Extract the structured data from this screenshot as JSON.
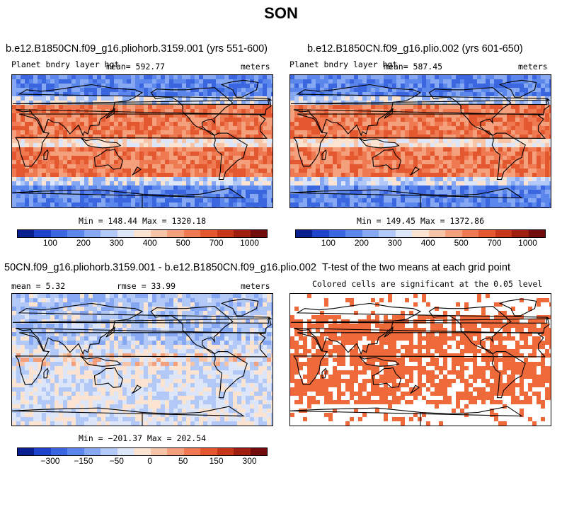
{
  "title": "SON",
  "palettes": {
    "abs": [
      "#0a1f8f",
      "#1d44c9",
      "#3a66e0",
      "#5b86ec",
      "#86a8f2",
      "#b2c8f7",
      "#dde6f8",
      "#fbe3d2",
      "#f8c4a8",
      "#f5a07c",
      "#ef7a52",
      "#e3582e",
      "#c6381a",
      "#a01e0e",
      "#730c0c"
    ],
    "sig": "#ef6a3a"
  },
  "panels": [
    {
      "id": "p1",
      "title": "b.e12.B1850CN.f09_g16.pliohorb.3159.001 (yrs 551-600)",
      "var": "Planet bndry layer hgt",
      "mean": "mean= 592.77",
      "units": "meters",
      "minmax": "Min = 148.44 Max = 1320.18",
      "ticks": [
        "100",
        "200",
        "300",
        "400",
        "500",
        "700",
        "1000"
      ]
    },
    {
      "id": "p2",
      "title": "b.e12.B1850CN.f09_g16.plio.002 (yrs 601-650)",
      "var": "Planet bndry layer hgt",
      "mean": "mean= 587.45",
      "units": "meters",
      "minmax": "Min = 149.45 Max = 1372.86",
      "ticks": [
        "100",
        "200",
        "300",
        "400",
        "500",
        "700",
        "1000"
      ]
    },
    {
      "id": "p3",
      "title": "50CN.f09_g16.pliohorb.3159.001 - b.e12.B1850CN.f09_g16.plio.002",
      "mean": "mean =    5.32",
      "rmse": "rmse =   33.99",
      "units": "meters",
      "minmax": "Min = −201.37 Max = 202.54",
      "ticks": [
        "−300",
        "−150",
        "−50",
        "0",
        "50",
        "150",
        "300"
      ]
    },
    {
      "id": "p4",
      "title": "T-test of the two means at each grid point",
      "subtitle": "Colored cells are significant at the 0.05 level"
    }
  ],
  "chart_data": [
    {
      "type": "heatmap",
      "title": "b.e12.B1850CN.f09_g16.pliohorb.3159.001 (yrs 551-600)",
      "variable": "Planet bndry layer hgt",
      "units": "meters",
      "mean": 592.77,
      "min": 148.44,
      "max": 1320.18,
      "levels": [
        100,
        200,
        300,
        400,
        500,
        700,
        1000
      ]
    },
    {
      "type": "heatmap",
      "title": "b.e12.B1850CN.f09_g16.plio.002 (yrs 601-650)",
      "variable": "Planet bndry layer hgt",
      "units": "meters",
      "mean": 587.45,
      "min": 149.45,
      "max": 1372.86,
      "levels": [
        100,
        200,
        300,
        400,
        500,
        700,
        1000
      ]
    },
    {
      "type": "heatmap",
      "title": "50CN.f09_g16.pliohorb.3159.001 - b.e12.B1850CN.f09_g16.plio.002",
      "units": "meters",
      "mean": 5.32,
      "rmse": 33.99,
      "min": -201.37,
      "max": 202.54,
      "levels": [
        -300,
        -150,
        -50,
        0,
        50,
        150,
        300
      ]
    },
    {
      "type": "heatmap",
      "title": "T-test of the two means at each grid point",
      "subtitle": "Colored cells are significant at the 0.05 level"
    }
  ]
}
